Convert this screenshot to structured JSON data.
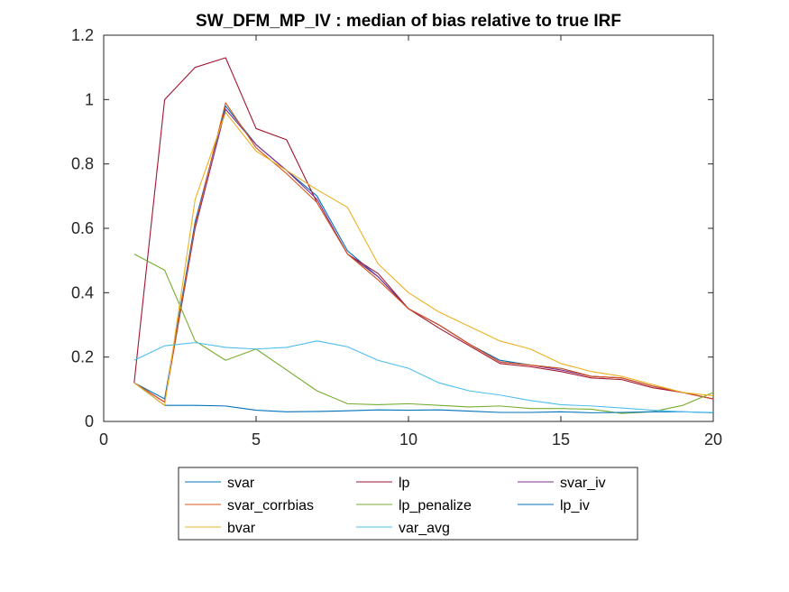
{
  "chart_data": {
    "type": "line",
    "title": "SW_DFM_MP_IV : median of bias relative to true IRF",
    "xlabel": "",
    "ylabel": "",
    "xlim": [
      0,
      20
    ],
    "ylim": [
      0,
      1.2
    ],
    "xticks": [
      0,
      5,
      10,
      15,
      20
    ],
    "yticks": [
      0,
      0.2,
      0.4,
      0.6,
      0.8,
      1,
      1.2
    ],
    "xtick_labels": [
      "0",
      "5",
      "10",
      "15",
      "20"
    ],
    "ytick_labels": [
      "0",
      "0.2",
      "0.4",
      "0.6",
      "0.8",
      "1",
      "1.2"
    ],
    "grid": false,
    "legend_placement": "bottom-outside",
    "x": [
      1,
      2,
      3,
      4,
      5,
      6,
      7,
      8,
      9,
      10,
      11,
      12,
      13,
      14,
      15,
      16,
      17,
      18,
      19,
      20
    ],
    "series": [
      {
        "name": "svar",
        "color": "#0072BD",
        "values": [
          0.12,
          0.07,
          0.62,
          0.98,
          0.86,
          0.78,
          0.7,
          0.53,
          0.45,
          0.35,
          0.3,
          0.24,
          0.19,
          0.175,
          0.165,
          0.14,
          0.135,
          0.11,
          0.09,
          0.07
        ]
      },
      {
        "name": "lp",
        "color": "#A2142F",
        "values": [
          0.12,
          1.0,
          1.1,
          1.13,
          0.91,
          0.875,
          0.68,
          0.52,
          0.46,
          0.35,
          0.29,
          0.235,
          0.18,
          0.17,
          0.155,
          0.135,
          0.13,
          0.105,
          0.09,
          0.07
        ]
      },
      {
        "name": "svar_iv",
        "color": "#7E2F8E",
        "values": [
          0.12,
          0.06,
          0.6,
          0.97,
          0.86,
          0.78,
          0.69,
          0.52,
          0.45,
          0.35,
          0.3,
          0.24,
          0.185,
          0.175,
          0.16,
          0.14,
          0.135,
          0.11,
          0.09,
          0.07
        ]
      },
      {
        "name": "svar_corrbias",
        "color": "#D95319",
        "values": [
          0.12,
          0.06,
          0.61,
          0.99,
          0.85,
          0.77,
          0.68,
          0.52,
          0.44,
          0.35,
          0.3,
          0.24,
          0.185,
          0.175,
          0.165,
          0.14,
          0.135,
          0.11,
          0.09,
          0.07
        ]
      },
      {
        "name": "lp_penalize",
        "color": "#77AC30",
        "values": [
          0.52,
          0.47,
          0.25,
          0.19,
          0.225,
          0.16,
          0.095,
          0.055,
          0.052,
          0.055,
          0.05,
          0.045,
          0.048,
          0.04,
          0.04,
          0.038,
          0.025,
          0.03,
          0.05,
          0.09
        ]
      },
      {
        "name": "lp_iv",
        "color": "#0072BD",
        "values": [
          0.12,
          0.05,
          0.05,
          0.048,
          0.035,
          0.03,
          0.031,
          0.033,
          0.036,
          0.035,
          0.036,
          0.032,
          0.028,
          0.028,
          0.03,
          0.027,
          0.028,
          0.03,
          0.03,
          0.027
        ]
      },
      {
        "name": "bvar",
        "color": "#EDB120",
        "values": [
          0.12,
          0.05,
          0.69,
          0.96,
          0.84,
          0.78,
          0.72,
          0.665,
          0.49,
          0.4,
          0.34,
          0.295,
          0.25,
          0.225,
          0.18,
          0.155,
          0.14,
          0.115,
          0.09,
          0.08
        ]
      },
      {
        "name": "var_avg",
        "color": "#4DBEEE",
        "values": [
          0.19,
          0.235,
          0.245,
          0.23,
          0.225,
          0.23,
          0.25,
          0.232,
          0.19,
          0.165,
          0.12,
          0.095,
          0.082,
          0.065,
          0.052,
          0.048,
          0.042,
          0.035,
          0.03,
          0.028
        ]
      }
    ]
  }
}
